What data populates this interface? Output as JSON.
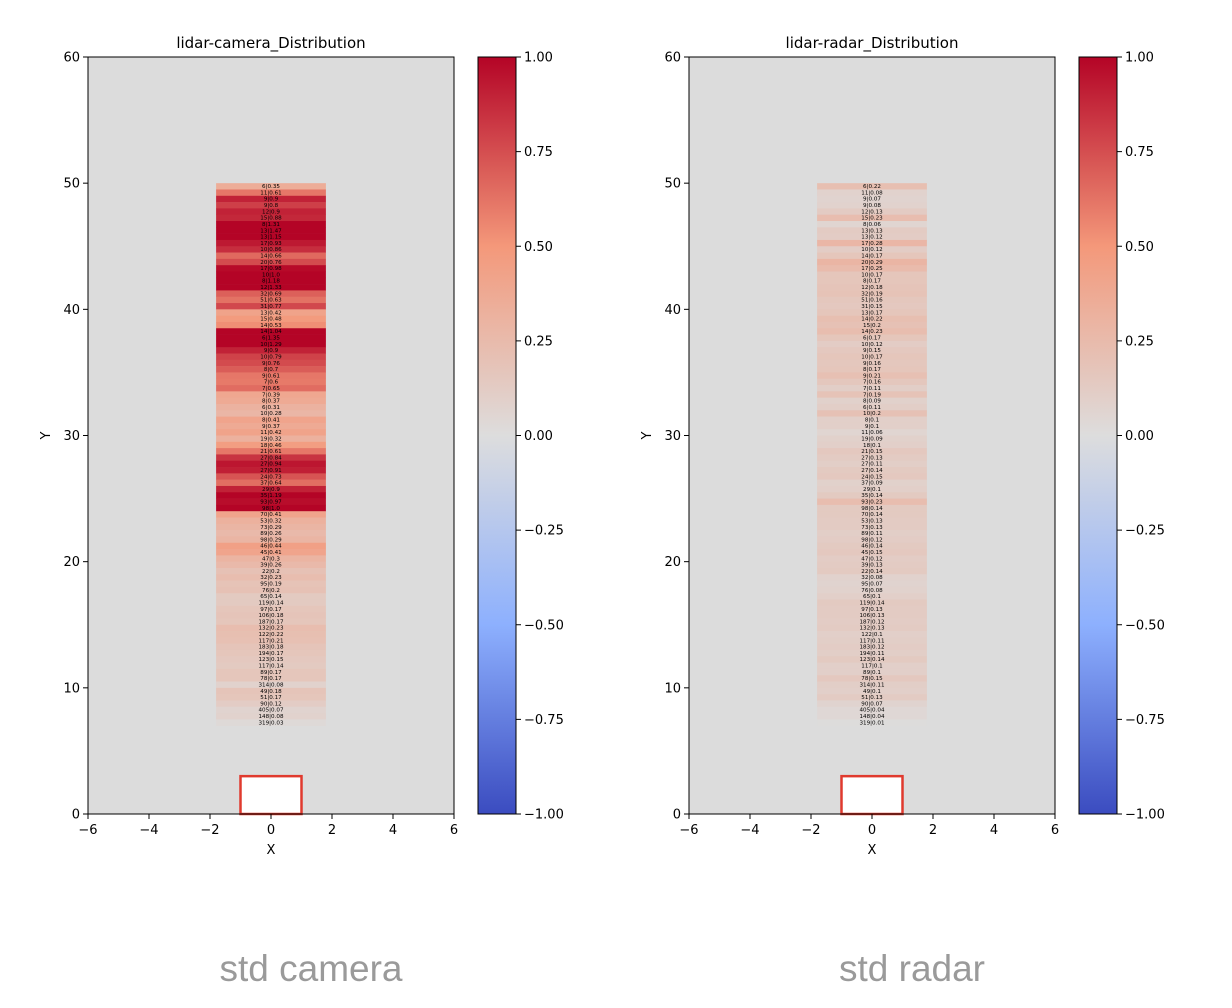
{
  "chart_data": [
    {
      "type": "heatmap",
      "title": "lidar-camera_Distribution",
      "xlabel": "X",
      "ylabel": "Y",
      "xlim": [
        -6,
        6
      ],
      "ylim": [
        0,
        60
      ],
      "x_ticks": [
        "−6",
        "−4",
        "−2",
        "0",
        "2",
        "4",
        "6"
      ],
      "y_ticks": [
        "0",
        "10",
        "20",
        "30",
        "40",
        "50",
        "60"
      ],
      "background": "#dcdcdc",
      "strip_x_range": [
        -1.8,
        1.8
      ],
      "strip_y_range": [
        7,
        50
      ],
      "ego_box": {
        "x": [
          -1,
          1
        ],
        "y": [
          0,
          3
        ],
        "edge_color": "#e03a2e",
        "fill": "#ffffff"
      },
      "colorbar": {
        "range": [
          -1,
          1
        ],
        "ticks": [
          "1.00",
          "0.75",
          "0.50",
          "0.25",
          "0.00",
          "−0.25",
          "−0.50",
          "−0.75",
          "−1.00"
        ],
        "colormap": "coolwarm"
      },
      "cell_labels": [
        "6|0.35",
        "11|0.61",
        "9|0.9",
        "9|0.8",
        "12|0.9",
        "15|0.88",
        "8|1.31",
        "13|1.47",
        "13|1.15",
        "17|0.93",
        "10|0.86",
        "14|0.66",
        "20|0.76",
        "17|0.98",
        "10|1.0",
        "8|1.18",
        "12|1.33",
        "32|0.69",
        "51|0.63",
        "31|0.77",
        "13|0.42",
        "15|0.48",
        "14|0.53",
        "14|1.04",
        "6|1.35",
        "10|1.29",
        "9|0.9",
        "10|0.79",
        "9|0.76",
        "8|0.7",
        "9|0.61",
        "7|0.6",
        "7|0.65",
        "7|0.39",
        "8|0.37",
        "6|0.31",
        "10|0.28",
        "8|0.41",
        "9|0.37",
        "11|0.42",
        "19|0.32",
        "18|0.46",
        "21|0.61",
        "27|0.84",
        "27|0.94",
        "27|0.91",
        "24|0.73",
        "37|0.64",
        "29|0.9",
        "35|1.19",
        "93|0.97",
        "98|1.0",
        "70|0.41",
        "53|0.32",
        "73|0.29",
        "89|0.26",
        "98|0.29",
        "46|0.44",
        "45|0.41",
        "47|0.3",
        "39|0.26",
        "22|0.2",
        "32|0.23",
        "95|0.19",
        "76|0.2",
        "65|0.14",
        "119|0.14",
        "97|0.17",
        "106|0.18",
        "187|0.17",
        "132|0.23",
        "122|0.22",
        "117|0.21",
        "183|0.18",
        "194|0.17",
        "123|0.15",
        "117|0.14",
        "89|0.17",
        "78|0.17",
        "314|0.08",
        "49|0.18",
        "51|0.17",
        "90|0.12",
        "405|0.07",
        "148|0.08",
        "319|0.03"
      ],
      "values": [
        0.35,
        0.61,
        0.9,
        0.8,
        0.9,
        0.88,
        1.31,
        1.47,
        1.15,
        0.93,
        0.86,
        0.66,
        0.76,
        0.98,
        1.0,
        1.18,
        1.33,
        0.69,
        0.63,
        0.77,
        0.42,
        0.48,
        0.53,
        1.04,
        1.35,
        1.29,
        0.9,
        0.79,
        0.76,
        0.7,
        0.61,
        0.6,
        0.65,
        0.39,
        0.37,
        0.31,
        0.28,
        0.41,
        0.37,
        0.42,
        0.32,
        0.46,
        0.61,
        0.84,
        0.94,
        0.91,
        0.73,
        0.64,
        0.9,
        1.19,
        0.97,
        1.0,
        0.41,
        0.32,
        0.29,
        0.26,
        0.29,
        0.44,
        0.41,
        0.3,
        0.26,
        0.2,
        0.23,
        0.19,
        0.2,
        0.14,
        0.14,
        0.17,
        0.18,
        0.17,
        0.23,
        0.22,
        0.21,
        0.18,
        0.17,
        0.15,
        0.14,
        0.17,
        0.17,
        0.08,
        0.18,
        0.17,
        0.12,
        0.07,
        0.08,
        0.03
      ]
    },
    {
      "type": "heatmap",
      "title": "lidar-radar_Distribution",
      "xlabel": "X",
      "ylabel": "Y",
      "xlim": [
        -6,
        6
      ],
      "ylim": [
        0,
        60
      ],
      "x_ticks": [
        "−6",
        "−4",
        "−2",
        "0",
        "2",
        "4",
        "6"
      ],
      "y_ticks": [
        "0",
        "10",
        "20",
        "30",
        "40",
        "50",
        "60"
      ],
      "background": "#dcdcdc",
      "strip_x_range": [
        -1.8,
        1.8
      ],
      "strip_y_range": [
        7,
        50
      ],
      "ego_box": {
        "x": [
          -1,
          1
        ],
        "y": [
          0,
          3
        ],
        "edge_color": "#e03a2e",
        "fill": "#ffffff"
      },
      "colorbar": {
        "range": [
          -1,
          1
        ],
        "ticks": [
          "1.00",
          "0.75",
          "0.50",
          "0.25",
          "0.00",
          "−0.25",
          "−0.50",
          "−0.75",
          "−1.00"
        ],
        "colormap": "coolwarm"
      },
      "cell_labels": [
        "6|0.22",
        "11|0.08",
        "9|0.07",
        "9|0.08",
        "12|0.13",
        "15|0.23",
        "8|0.06",
        "13|0.13",
        "13|0.12",
        "17|0.28",
        "10|0.12",
        "14|0.17",
        "20|0.29",
        "17|0.25",
        "10|0.17",
        "8|0.17",
        "12|0.18",
        "32|0.19",
        "51|0.16",
        "31|0.15",
        "13|0.17",
        "14|0.22",
        "15|0.2",
        "14|0.23",
        "6|0.17",
        "10|0.12",
        "9|0.15",
        "10|0.17",
        "9|0.16",
        "8|0.17",
        "9|0.21",
        "7|0.16",
        "7|0.11",
        "7|0.19",
        "8|0.09",
        "6|0.11",
        "10|0.2",
        "8|0.1",
        "9|0.1",
        "11|0.06",
        "19|0.09",
        "18|0.1",
        "21|0.15",
        "27|0.13",
        "27|0.11",
        "27|0.14",
        "24|0.15",
        "37|0.09",
        "29|0.1",
        "35|0.14",
        "93|0.23",
        "98|0.14",
        "70|0.14",
        "53|0.13",
        "73|0.13",
        "89|0.11",
        "98|0.12",
        "46|0.14",
        "45|0.15",
        "47|0.12",
        "39|0.13",
        "22|0.14",
        "32|0.08",
        "95|0.07",
        "76|0.08",
        "65|0.1",
        "119|0.14",
        "97|0.13",
        "106|0.13",
        "187|0.12",
        "132|0.13",
        "122|0.1",
        "117|0.11",
        "183|0.12",
        "194|0.11",
        "123|0.14",
        "117|0.1",
        "89|0.1",
        "78|0.15",
        "314|0.11",
        "49|0.1",
        "51|0.13",
        "90|0.07",
        "405|0.04",
        "148|0.04",
        "319|0.01"
      ],
      "values": [
        0.22,
        0.08,
        0.07,
        0.08,
        0.13,
        0.23,
        0.06,
        0.13,
        0.12,
        0.28,
        0.12,
        0.17,
        0.29,
        0.25,
        0.17,
        0.17,
        0.18,
        0.19,
        0.16,
        0.15,
        0.17,
        0.22,
        0.2,
        0.23,
        0.17,
        0.12,
        0.15,
        0.17,
        0.16,
        0.17,
        0.21,
        0.16,
        0.11,
        0.19,
        0.09,
        0.11,
        0.2,
        0.1,
        0.1,
        0.06,
        0.09,
        0.1,
        0.15,
        0.13,
        0.11,
        0.14,
        0.15,
        0.09,
        0.1,
        0.14,
        0.23,
        0.14,
        0.14,
        0.13,
        0.13,
        0.11,
        0.12,
        0.14,
        0.15,
        0.12,
        0.13,
        0.14,
        0.08,
        0.07,
        0.08,
        0.1,
        0.14,
        0.13,
        0.13,
        0.12,
        0.13,
        0.1,
        0.11,
        0.12,
        0.11,
        0.14,
        0.1,
        0.1,
        0.15,
        0.11,
        0.1,
        0.13,
        0.07,
        0.04,
        0.04,
        0.01
      ]
    }
  ],
  "captions": [
    "std camera",
    "std radar"
  ]
}
